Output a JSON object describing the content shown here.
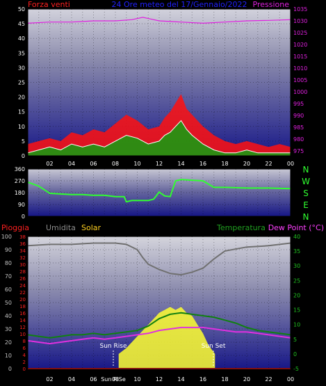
{
  "header": {
    "title": "24 Ore meteo del 17/Gennaio/2022",
    "left_label": "Forza venti",
    "right_label": "Pressione"
  },
  "bottom_header": {
    "rain_label": "Pioggia",
    "humidity_label": "Umidita",
    "solar_label": "Solar",
    "temp_label": "Temperatura",
    "dewpoint_label": "Dew Point (°C)"
  },
  "annotations": {
    "sun_rise": "Sun Rise",
    "sun_set": "Sun Set",
    "sun_rise_axis": "Sun RiSe"
  },
  "compass": [
    "N",
    "W",
    "S",
    "E",
    "N"
  ],
  "colors": {
    "background": "#000000",
    "plot_top": "#c8c8d8",
    "plot_bottom": "#1a1a8c",
    "wind_gust": "#ff1010",
    "wind_avg": "#10a010",
    "wind_avg_light": "#ffffff",
    "pressure": "#e020e0",
    "direction": "#30ff30",
    "humidity": "#707070",
    "temperature": "#108010",
    "dewpoint": "#e030e0",
    "solar": "#ffff30",
    "rain": "#ff2020",
    "tick_text": "#ffffff"
  },
  "chart_data": [
    {
      "type": "line",
      "name": "wind-pressure",
      "title": "24 Ore meteo del 17/Gennaio/2022",
      "x_ticks": [
        "02",
        "04",
        "06",
        "08",
        "10",
        "12",
        "14",
        "16",
        "18",
        "20",
        "22",
        "00"
      ],
      "left_axis": {
        "label": "Forza venti",
        "ticks": [
          0,
          5,
          10,
          15,
          20,
          25,
          30,
          35,
          40,
          45,
          50
        ],
        "range": [
          0,
          50
        ]
      },
      "right_axis": {
        "label": "Pressione",
        "ticks": [
          975,
          980,
          985,
          990,
          995,
          1000,
          1005,
          1010,
          1015,
          1020,
          1025,
          1030,
          1035
        ],
        "range": [
          973,
          1035
        ]
      },
      "series": [
        {
          "name": "Pressione",
          "axis": "right",
          "x": [
            0,
            2,
            4,
            6,
            8,
            9.5,
            10.5,
            11,
            12,
            14,
            16,
            18,
            20,
            22,
            24
          ],
          "values": [
            1029,
            1029.5,
            1029.5,
            1030,
            1030,
            1030.5,
            1031.5,
            1031,
            1030,
            1029.5,
            1029,
            1029.5,
            1030,
            1030.2,
            1030.5
          ]
        },
        {
          "name": "gust",
          "axis": "left",
          "x": [
            0,
            1,
            2,
            3,
            4,
            5,
            6,
            7,
            8,
            9,
            10,
            11,
            12,
            12.5,
            13,
            13.5,
            14,
            14.5,
            15,
            16,
            17,
            18,
            19,
            20,
            21,
            22,
            23,
            24
          ],
          "values": [
            4,
            5,
            6,
            5,
            8,
            7,
            9,
            8,
            11,
            14,
            12,
            9,
            10,
            13,
            15,
            18,
            21,
            16,
            14,
            10,
            7,
            5,
            4,
            5,
            4,
            3,
            4,
            3
          ]
        },
        {
          "name": "average",
          "axis": "left",
          "x": [
            0,
            1,
            2,
            3,
            4,
            5,
            6,
            7,
            8,
            9,
            10,
            11,
            12,
            12.5,
            13,
            13.5,
            14,
            14.5,
            15,
            16,
            17,
            18,
            19,
            20,
            21,
            22,
            23,
            24
          ],
          "values": [
            1,
            2,
            3,
            2,
            4,
            3,
            4,
            3,
            5,
            7,
            6,
            4,
            5,
            7,
            8,
            10,
            12,
            9,
            7,
            4,
            2,
            1,
            1,
            2,
            1,
            1,
            1,
            1
          ]
        }
      ]
    },
    {
      "type": "line",
      "name": "wind-direction",
      "left_axis": {
        "ticks": [
          0,
          90,
          180,
          270,
          360
        ],
        "range": [
          0,
          360
        ]
      },
      "series": [
        {
          "name": "direction",
          "x": [
            0,
            1,
            2,
            3,
            4,
            5,
            6,
            7,
            8,
            8.8,
            9,
            9.5,
            10,
            11,
            11.5,
            12,
            12.5,
            13,
            13.5,
            14,
            15,
            16,
            17,
            18,
            20,
            22,
            24
          ],
          "values": [
            260,
            230,
            175,
            170,
            165,
            165,
            160,
            160,
            150,
            150,
            110,
            120,
            120,
            120,
            130,
            185,
            155,
            150,
            270,
            280,
            275,
            270,
            220,
            220,
            215,
            215,
            210
          ]
        }
      ]
    },
    {
      "type": "area",
      "name": "temp-humidity-solar",
      "x_ticks": [
        "02",
        "04",
        "06",
        "08",
        "10",
        "12",
        "14",
        "16",
        "18",
        "20",
        "22",
        "00"
      ],
      "left_axis_humidity": {
        "label": "Umidita",
        "ticks": [
          0,
          10,
          20,
          30,
          40,
          50,
          60,
          70,
          80,
          90,
          100
        ],
        "range": [
          0,
          100
        ]
      },
      "left_axis_rain": {
        "label": "Pioggia",
        "ticks": [
          0,
          2,
          4,
          6,
          8,
          10,
          12,
          14,
          16,
          18,
          20,
          22,
          24,
          26,
          28,
          30,
          32,
          34,
          36,
          38
        ],
        "range": [
          0,
          38
        ]
      },
      "right_axis": {
        "label": "Dew Point (°C)",
        "ticks": [
          -5,
          0,
          5,
          10,
          15,
          20,
          25,
          30,
          35,
          40
        ],
        "range": [
          -5,
          40
        ]
      },
      "series": [
        {
          "name": "Umidita",
          "x": [
            0,
            2,
            4,
            6,
            8,
            9,
            10,
            10.5,
            11,
            12,
            13,
            14,
            15,
            16,
            17,
            18,
            20,
            22,
            24
          ],
          "values": [
            93,
            94,
            94,
            95,
            95,
            94,
            90,
            84,
            79,
            75,
            72,
            71,
            73,
            76,
            83,
            89,
            92,
            93,
            95
          ]
        },
        {
          "name": "Temperatura",
          "x": [
            0,
            1,
            2,
            3,
            4,
            5,
            6,
            7,
            8,
            9,
            10,
            11,
            12,
            13,
            14,
            15,
            16,
            17,
            18,
            19,
            20,
            21,
            22,
            23,
            24
          ],
          "values": [
            6.5,
            6,
            5.5,
            6,
            6.5,
            6.5,
            7,
            6.5,
            7,
            7.5,
            8,
            9.5,
            12,
            13.5,
            14,
            13.5,
            13,
            12.5,
            11.5,
            10.5,
            9,
            8,
            7.5,
            7,
            6.5
          ]
        },
        {
          "name": "Dew Point",
          "x": [
            0,
            1,
            2,
            3,
            4,
            5,
            6,
            7,
            8,
            9,
            10,
            11,
            12,
            13,
            14,
            15,
            16,
            17,
            18,
            19,
            20,
            21,
            22,
            23,
            24
          ],
          "values": [
            4.5,
            4,
            3.5,
            4,
            4.5,
            5,
            5.5,
            5,
            5.5,
            6,
            6.5,
            7,
            8,
            8.5,
            9,
            9,
            9,
            8.5,
            8,
            7.5,
            7.5,
            7,
            6.5,
            6,
            5.5
          ]
        },
        {
          "name": "Solar",
          "x": [
            8.3,
            9,
            10,
            11,
            12,
            12.5,
            13,
            13.5,
            14,
            14.5,
            15,
            15.5,
            16,
            16.5,
            17.1
          ],
          "values": [
            0,
            2,
            6,
            10,
            14,
            15,
            16,
            15,
            16,
            14,
            13,
            10,
            7,
            3,
            0
          ]
        },
        {
          "name": "Pioggia",
          "x": [
            0,
            24
          ],
          "values": [
            0,
            0
          ]
        }
      ]
    }
  ]
}
